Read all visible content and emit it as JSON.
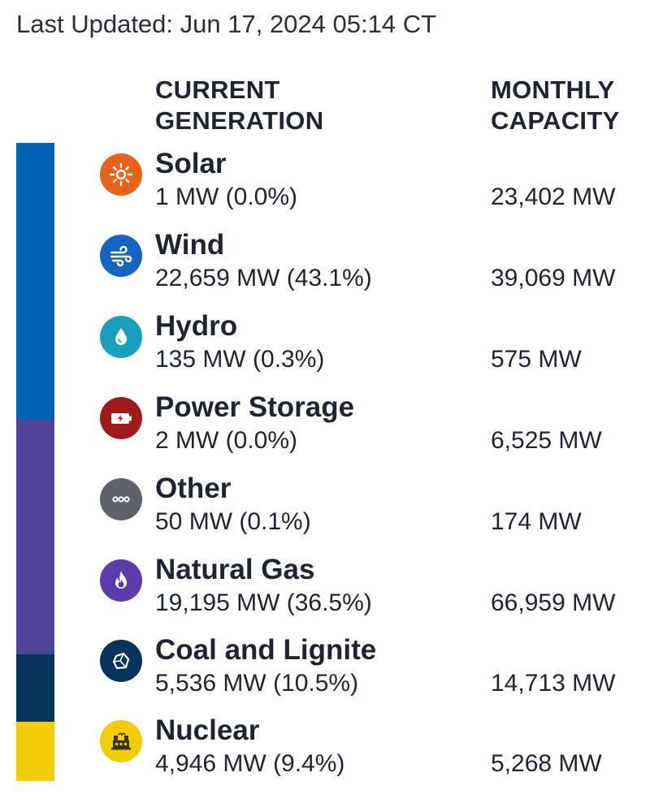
{
  "header": {
    "last_updated": "Last Updated: Jun 17, 2024 05:14 CT",
    "col_current": "CURRENT GENERATION",
    "col_capacity": "MONTHLY CAPACITY"
  },
  "colors": {
    "renewables": "#0062B3",
    "other_fossil": "#504499",
    "coal": "#06325C",
    "nuclear": "#F2CC05"
  },
  "sources": [
    {
      "name": "Solar",
      "current": "1 MW (0.0%)",
      "capacity": "23,402 MW",
      "icon": "sun-icon",
      "icon_color": "#E5641A"
    },
    {
      "name": "Wind",
      "current": "22,659 MW (43.1%)",
      "capacity": "39,069 MW",
      "icon": "wind-icon",
      "icon_color": "#1565C0"
    },
    {
      "name": "Hydro",
      "current": "135 MW (0.3%)",
      "capacity": "575 MW",
      "icon": "water-drop-icon",
      "icon_color": "#19A0BC"
    },
    {
      "name": "Power Storage",
      "current": "2 MW (0.0%)",
      "capacity": "6,525 MW",
      "icon": "battery-icon",
      "icon_color": "#A01A1A"
    },
    {
      "name": "Other",
      "current": "50 MW (0.1%)",
      "capacity": "174 MW",
      "icon": "more-dots-icon",
      "icon_color": "#5F6268"
    },
    {
      "name": "Natural Gas",
      "current": "19,195 MW (36.5%)",
      "capacity": "66,959 MW",
      "icon": "flame-icon",
      "icon_color": "#5A3DA8"
    },
    {
      "name": "Coal and Lignite",
      "current": "5,536 MW (10.5%)",
      "capacity": "14,713 MW",
      "icon": "coal-icon",
      "icon_color": "#06325C"
    },
    {
      "name": "Nuclear",
      "current": "4,946 MW (9.4%)",
      "capacity": "5,268 MW",
      "icon": "nuclear-plant-icon",
      "icon_color": "#F2CC05"
    }
  ]
}
